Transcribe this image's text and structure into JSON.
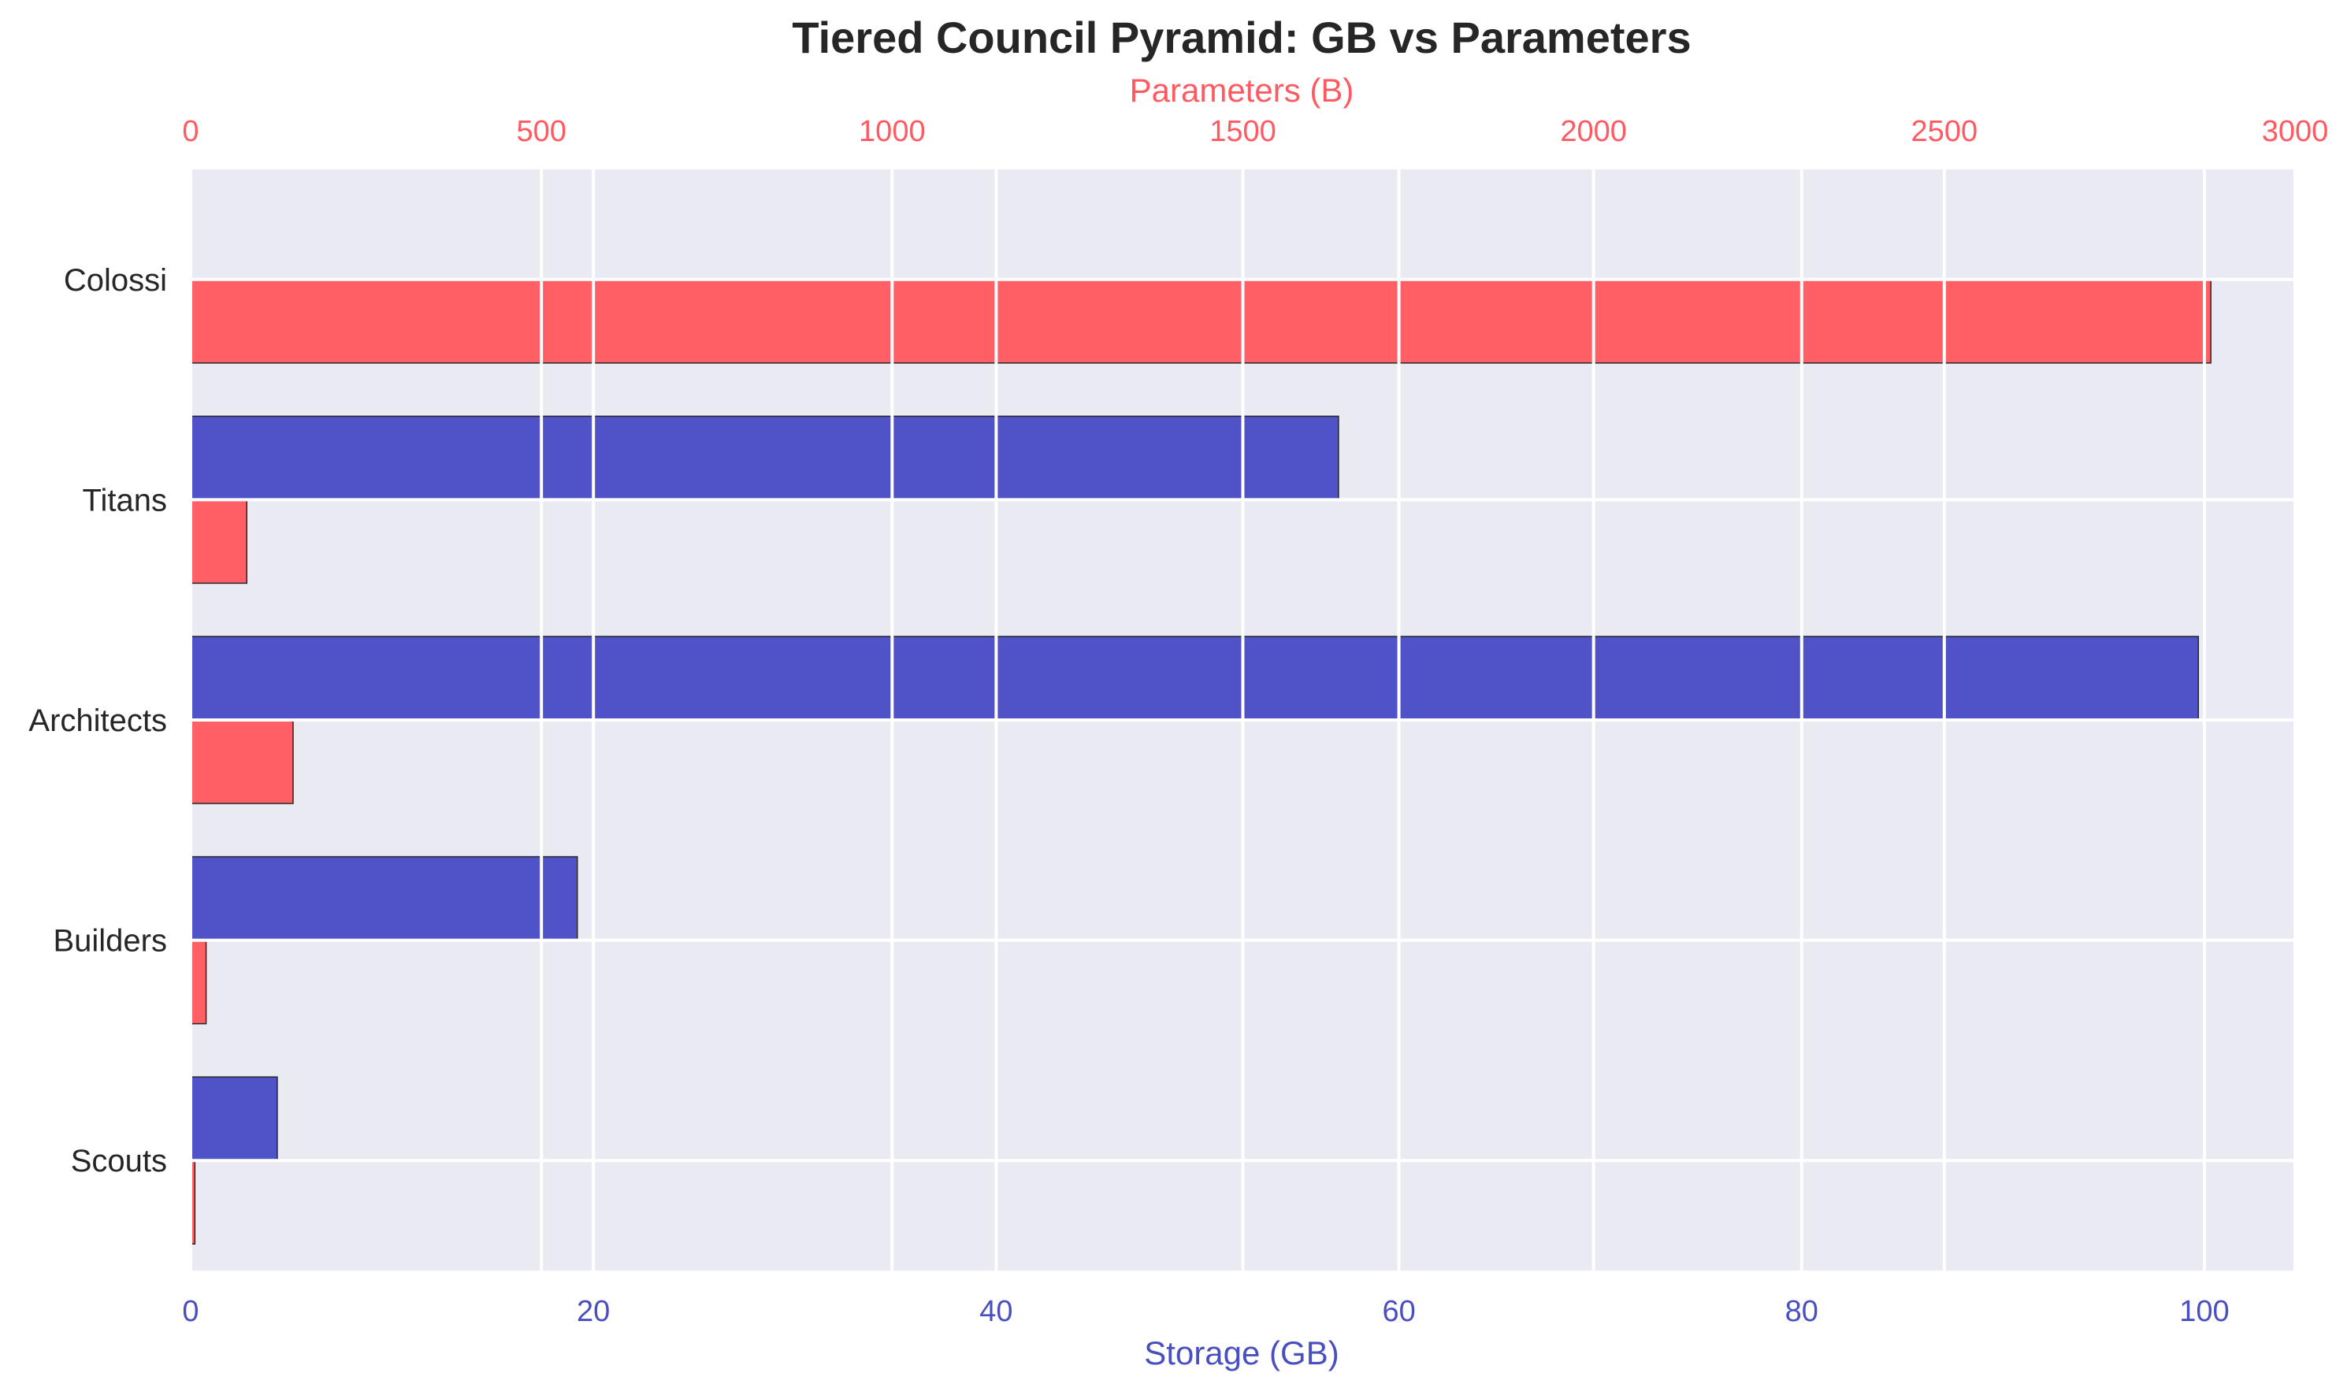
{
  "chart_data": {
    "type": "bar",
    "orientation": "horizontal",
    "title": "Tiered Council Pyramid: GB vs Parameters",
    "categories": [
      "Colossi",
      "Titans",
      "Architects",
      "Builders",
      "Scouts"
    ],
    "series": [
      {
        "name": "Storage (GB)",
        "axis": "bottom",
        "color": "#4f53c7",
        "values": [
          0,
          57,
          99.7,
          19.2,
          4.3
        ]
      },
      {
        "name": "Parameters (B)",
        "axis": "top",
        "color": "#ff5f65",
        "values": [
          2880,
          80,
          146,
          22,
          6
        ]
      }
    ],
    "x_bottom": {
      "label": "Storage (GB)",
      "lim": [
        0,
        104.5
      ],
      "ticks": [
        0,
        20,
        40,
        60,
        80,
        100
      ],
      "tick_labels": [
        "0",
        "20",
        "40",
        "60",
        "80",
        "100"
      ],
      "color": "#4a4fc0"
    },
    "x_top": {
      "label": "Parameters (B)",
      "lim": [
        0,
        3000
      ],
      "ticks": [
        0,
        500,
        1000,
        1500,
        2000,
        2500,
        3000
      ],
      "tick_labels": [
        "0",
        "500",
        "1000",
        "1500",
        "2000",
        "2500",
        "3000"
      ],
      "color": "#ff5a61"
    },
    "grid": true,
    "background": "#eaeaf2"
  }
}
